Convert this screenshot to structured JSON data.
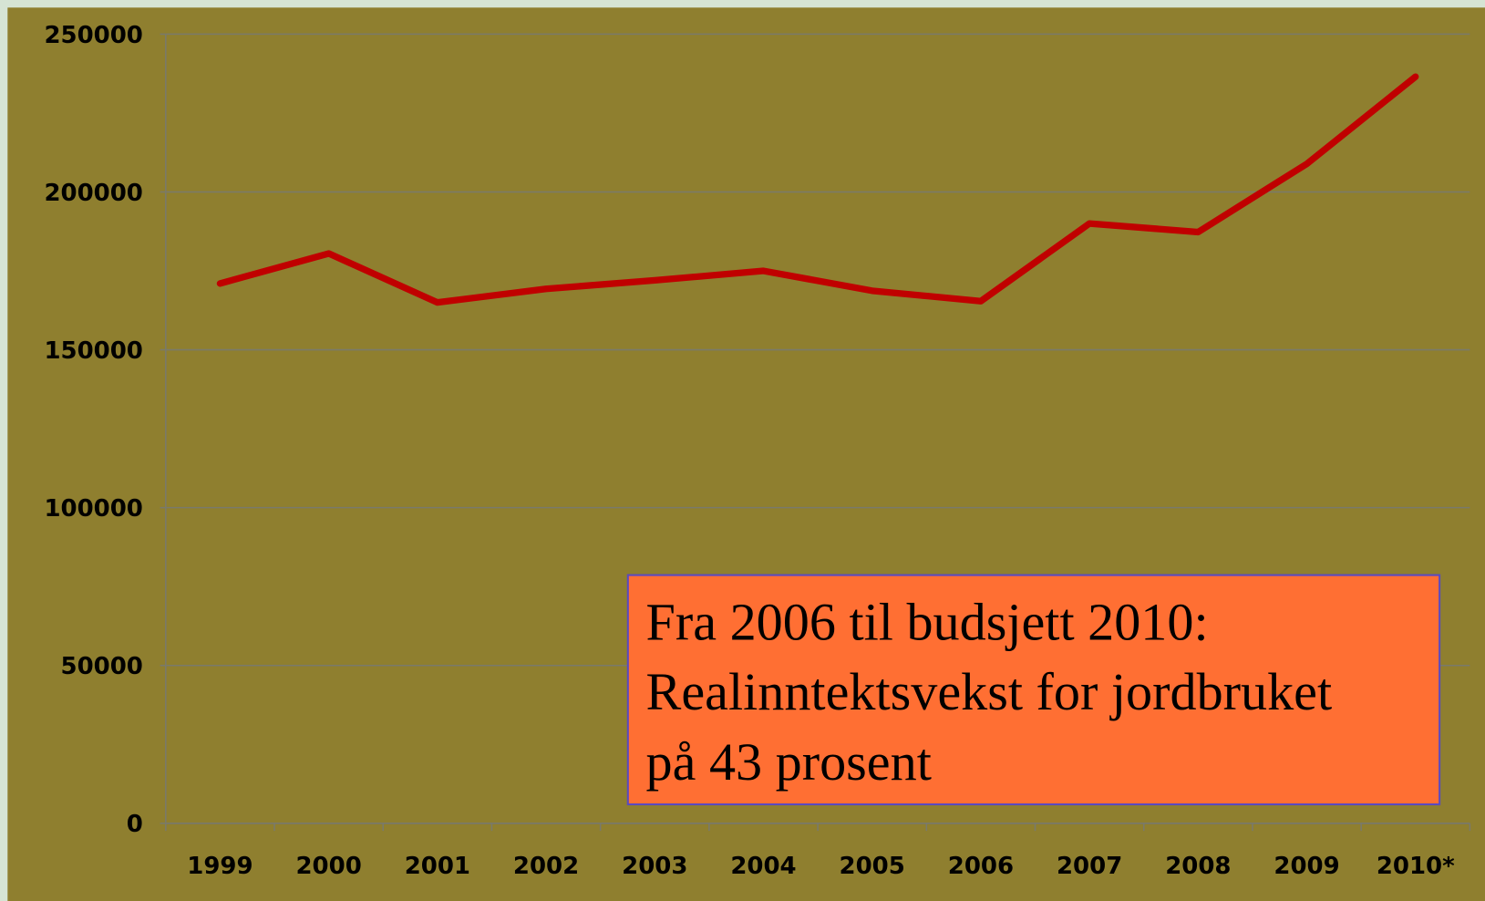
{
  "chart_data": {
    "type": "line",
    "categories": [
      "1999",
      "2000",
      "2001",
      "2002",
      "2003",
      "2004",
      "2005",
      "2006",
      "2007",
      "2008",
      "2009",
      "2010*"
    ],
    "series": [
      {
        "color": "#c00000",
        "values": [
          171000,
          180500,
          165000,
          169300,
          172000,
          175000,
          168700,
          165400,
          190000,
          187300,
          208900,
          236500
        ]
      }
    ],
    "ylim": [
      0,
      250000
    ],
    "yticks": [
      0,
      50000,
      100000,
      150000,
      200000,
      250000
    ],
    "grid": true,
    "annotation": [
      "Fra 2006 til budsjett 2010:",
      "Realinntektsvekst for jordbruket",
      "på 43 prosent"
    ]
  }
}
